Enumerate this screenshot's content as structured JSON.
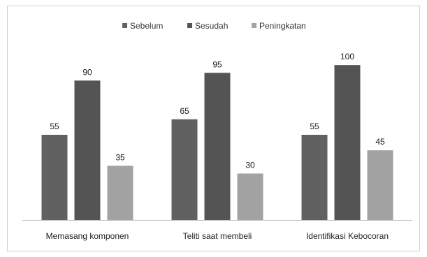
{
  "chart_data": {
    "type": "bar",
    "categories": [
      "Memasang komponen",
      "Teliti saat membeli",
      "Identifikasi Kebocoran"
    ],
    "series": [
      {
        "name": "Sebelum",
        "values": [
          55,
          65,
          55
        ],
        "color": "#616161"
      },
      {
        "name": "Sesudah",
        "values": [
          90,
          95,
          100
        ],
        "color": "#545454"
      },
      {
        "name": "Peningkatan",
        "values": [
          35,
          30,
          45
        ],
        "color": "#a3a3a3"
      }
    ],
    "ylim": [
      0,
      110
    ],
    "grid": false,
    "legend_position": "top",
    "data_labels": true
  }
}
